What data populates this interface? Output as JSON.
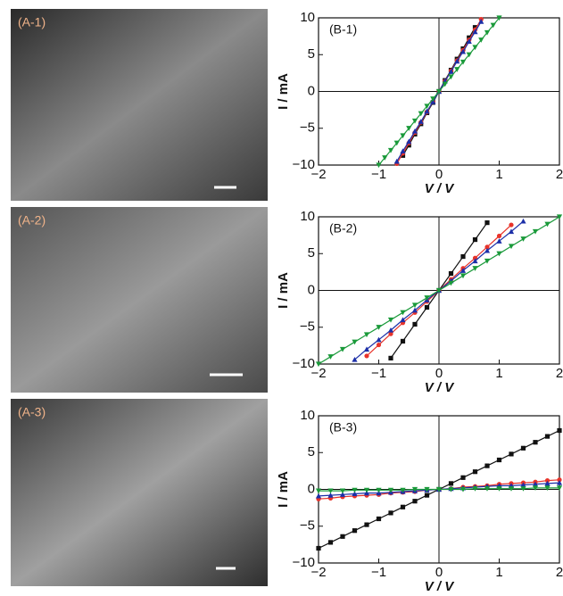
{
  "images": [
    {
      "label": "(A-1)"
    },
    {
      "label": "(A-2)"
    },
    {
      "label": "(A-3)"
    }
  ],
  "chart_data": [
    {
      "type": "line",
      "annotation": "(B-1)",
      "xlabel": "V / V",
      "ylabel": "I / mA",
      "xlim": [
        -2,
        2
      ],
      "ylim": [
        -10,
        10
      ],
      "xticks": [
        {
          "value": -2,
          "label": "−2"
        },
        {
          "value": -1,
          "label": "−1"
        },
        0,
        1,
        2
      ],
      "yticks": [
        {
          "value": -10,
          "label": "−10"
        },
        {
          "value": -5,
          "label": "−5"
        },
        0,
        5,
        10
      ],
      "x": [
        -1.0,
        -0.9,
        -0.8,
        -0.7,
        -0.6,
        -0.5,
        -0.4,
        -0.3,
        -0.2,
        -0.1,
        0,
        0.1,
        0.2,
        0.3,
        0.4,
        0.5,
        0.6,
        0.7,
        0.8,
        0.9,
        1.0
      ],
      "series": [
        {
          "color": "#111111",
          "marker": "square",
          "values": [
            null,
            null,
            null,
            null,
            -8.7,
            -7.3,
            -5.8,
            -4.4,
            -2.9,
            -1.5,
            0,
            1.5,
            2.9,
            4.4,
            5.8,
            7.3,
            8.7,
            null,
            null,
            null,
            null
          ]
        },
        {
          "color": "#e8332a",
          "marker": "circle",
          "values": [
            null,
            null,
            null,
            -9.8,
            -8.4,
            -7,
            -5.6,
            -4.2,
            -2.8,
            -1.4,
            0,
            1.4,
            2.8,
            4.2,
            5.6,
            7,
            8.4,
            9.8,
            null,
            null,
            null
          ]
        },
        {
          "color": "#1c2fa8",
          "marker": "triangle",
          "values": [
            null,
            null,
            null,
            -9.5,
            -8.1,
            -6.8,
            -5.4,
            -4.1,
            -2.7,
            -1.4,
            0,
            1.4,
            2.7,
            4.1,
            5.4,
            6.8,
            8.1,
            9.5,
            null,
            null,
            null
          ]
        },
        {
          "color": "#1a9a3a",
          "marker": "triangle-down",
          "values": [
            -10,
            -9,
            -8,
            -7,
            -6,
            -5,
            -4,
            -3,
            -2,
            -1,
            0,
            1,
            2,
            3,
            4,
            5,
            6,
            7,
            8,
            9,
            10
          ]
        }
      ]
    },
    {
      "type": "line",
      "annotation": "(B-2)",
      "xlabel": "V / V",
      "ylabel": "I / mA",
      "xlim": [
        -2,
        2
      ],
      "ylim": [
        -10,
        10
      ],
      "xticks": [
        {
          "value": -2,
          "label": "−2"
        },
        {
          "value": -1,
          "label": "−1"
        },
        0,
        1,
        2
      ],
      "yticks": [
        {
          "value": -10,
          "label": "−10"
        },
        {
          "value": -5,
          "label": "−5"
        },
        0,
        5,
        10
      ],
      "x": [
        -2,
        -1.8,
        -1.6,
        -1.4,
        -1.2,
        -1,
        -0.8,
        -0.6,
        -0.4,
        -0.2,
        0,
        0.2,
        0.4,
        0.6,
        0.8,
        1,
        1.2,
        1.4,
        1.6,
        1.8,
        2
      ],
      "series": [
        {
          "color": "#111111",
          "marker": "square",
          "values": [
            null,
            null,
            null,
            null,
            null,
            null,
            -9.2,
            -6.9,
            -4.6,
            -2.3,
            0,
            2.3,
            4.6,
            6.9,
            9.2,
            null,
            null,
            null,
            null,
            null,
            null
          ]
        },
        {
          "color": "#e8332a",
          "marker": "circle",
          "values": [
            null,
            null,
            null,
            null,
            -8.9,
            -7.4,
            -5.9,
            -4.4,
            -3,
            -1.5,
            0,
            1.5,
            3,
            4.4,
            5.9,
            7.4,
            8.9,
            null,
            null,
            null,
            null
          ]
        },
        {
          "color": "#1c2fa8",
          "marker": "triangle",
          "values": [
            null,
            null,
            null,
            -9.4,
            -8,
            -6.7,
            -5.4,
            -4,
            -2.7,
            -1.3,
            0,
            1.3,
            2.7,
            4,
            5.4,
            6.7,
            8,
            9.4,
            null,
            null,
            null
          ]
        },
        {
          "color": "#1a9a3a",
          "marker": "triangle-down",
          "values": [
            -10,
            -9,
            -8,
            -7,
            -6,
            -5,
            -4,
            -3,
            -2,
            -1,
            0,
            1,
            2,
            3,
            4,
            5,
            6,
            7,
            8,
            9,
            10
          ]
        }
      ]
    },
    {
      "type": "line",
      "annotation": "(B-3)",
      "xlabel": "V / V",
      "ylabel": "I / mA",
      "xlim": [
        -2,
        2
      ],
      "ylim": [
        -10,
        10
      ],
      "xticks": [
        {
          "value": -2,
          "label": "−2"
        },
        {
          "value": -1,
          "label": "−1"
        },
        0,
        1,
        2
      ],
      "yticks": [
        {
          "value": -10,
          "label": "−10"
        },
        {
          "value": -5,
          "label": "−5"
        },
        0,
        5,
        10
      ],
      "x": [
        -2,
        -1.8,
        -1.6,
        -1.4,
        -1.2,
        -1,
        -0.8,
        -0.6,
        -0.4,
        -0.2,
        0,
        0.2,
        0.4,
        0.6,
        0.8,
        1,
        1.2,
        1.4,
        1.6,
        1.8,
        2
      ],
      "series": [
        {
          "color": "#111111",
          "marker": "square",
          "values": [
            -8,
            -7.2,
            -6.4,
            -5.6,
            -4.8,
            -4,
            -3.2,
            -2.4,
            -1.6,
            -0.8,
            0,
            0.8,
            1.6,
            2.4,
            3.2,
            4,
            4.8,
            5.6,
            6.4,
            7.2,
            8
          ]
        },
        {
          "color": "#e8332a",
          "marker": "circle",
          "values": [
            -1.3,
            -1.2,
            -1,
            -0.9,
            -0.8,
            -0.7,
            -0.5,
            -0.4,
            -0.3,
            -0.1,
            0,
            0.1,
            0.3,
            0.4,
            0.5,
            0.7,
            0.8,
            0.9,
            1,
            1.2,
            1.3
          ]
        },
        {
          "color": "#1c2fa8",
          "marker": "triangle",
          "values": [
            -0.9,
            -0.8,
            -0.7,
            -0.6,
            -0.5,
            -0.5,
            -0.4,
            -0.3,
            -0.2,
            -0.1,
            0,
            0.1,
            0.2,
            0.3,
            0.4,
            0.5,
            0.5,
            0.6,
            0.7,
            0.8,
            0.9
          ]
        },
        {
          "color": "#1a9a3a",
          "marker": "triangle-down",
          "values": [
            -0.2,
            -0.2,
            -0.2,
            -0.1,
            -0.1,
            -0.1,
            -0.1,
            -0.1,
            0,
            0,
            0,
            0,
            0,
            0.1,
            0.1,
            0.1,
            0.1,
            0.1,
            0.2,
            0.2,
            0.2
          ]
        }
      ]
    }
  ]
}
